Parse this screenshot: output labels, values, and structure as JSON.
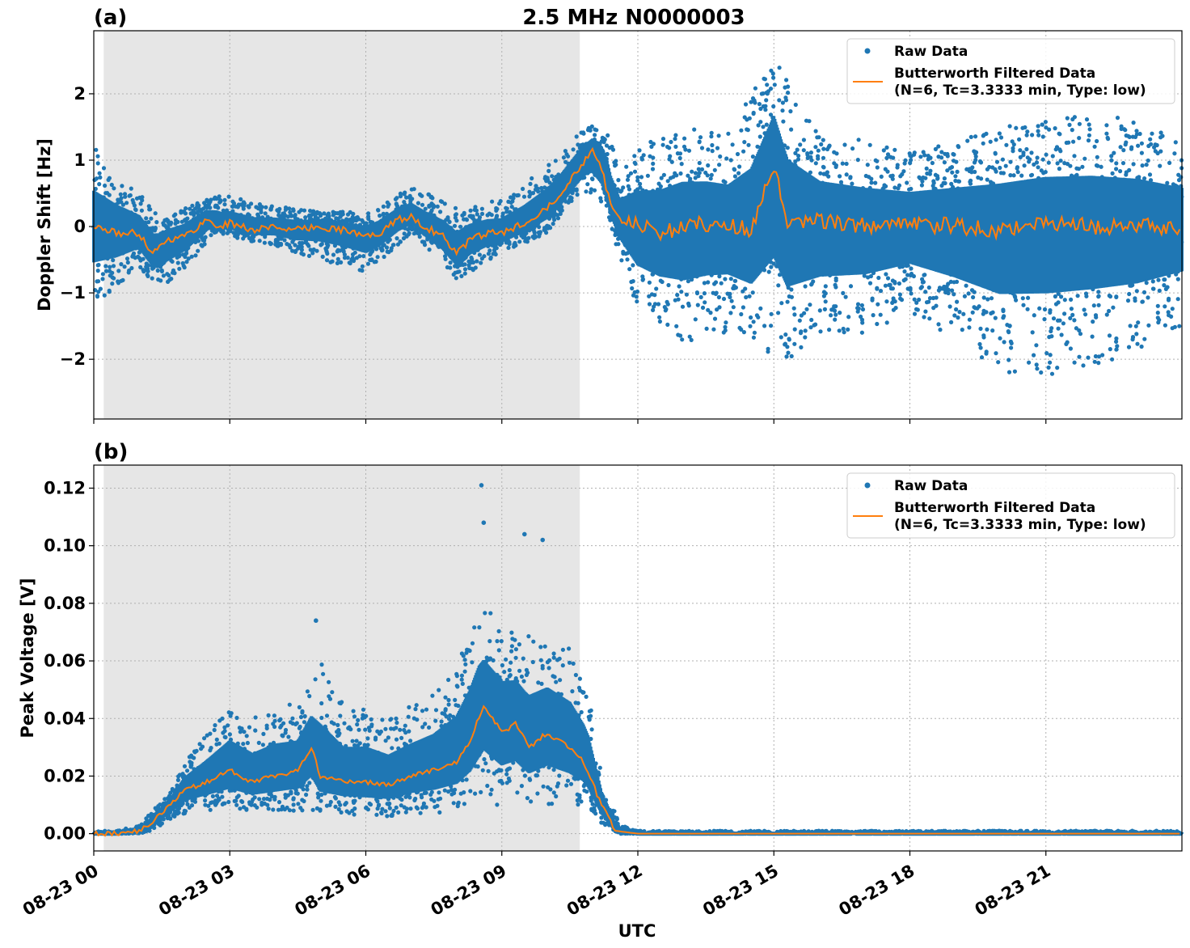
{
  "figure": {
    "title": "2.5 MHz N0000003",
    "xlabel": "UTC"
  },
  "colors": {
    "raw": "#1f77b4",
    "filtered": "#ff7f0e",
    "night_shade": "#e6e6e6"
  },
  "chart_data": [
    {
      "panel_label": "(a)",
      "type": "scatter",
      "title": "2.5 MHz N0000003",
      "ylabel": "Doppler Shift [Hz]",
      "xlabel": "",
      "xlim_hours": [
        0,
        24
      ],
      "ylim": [
        -2.9,
        2.95
      ],
      "yticks": [
        2,
        1,
        0,
        -1,
        -2
      ],
      "ytick_labels": [
        "2",
        "1",
        "0",
        "−1",
        "−2"
      ],
      "xticks_hours": [
        0,
        3,
        6,
        9,
        12,
        15,
        18,
        21
      ],
      "shaded_hours": [
        0.22,
        10.72
      ],
      "grid": true,
      "legend": {
        "position": "top-right",
        "raw_label": "Raw Data",
        "filtered_label_line1": "Butterworth Filtered Data",
        "filtered_label_line2": "(N=6, Tc=3.3333 min, Type: low)"
      },
      "series": [
        {
          "name": "Butterworth Filtered Data",
          "x_hours": [
            0,
            0.5,
            1,
            1.3,
            1.6,
            2,
            2.5,
            2.8,
            3,
            3.5,
            4,
            4.5,
            5,
            5.5,
            6,
            6.3,
            6.7,
            7,
            7.3,
            7.7,
            8,
            8.3,
            8.7,
            9,
            9.5,
            10,
            10.3,
            10.6,
            11,
            11.2,
            11.4,
            11.6,
            11.8,
            12,
            12.5,
            13,
            13.5,
            14,
            14.5,
            15,
            15.3,
            16,
            17,
            18,
            19,
            20,
            21,
            22,
            23,
            24
          ],
          "y": [
            0.0,
            -0.1,
            -0.1,
            -0.4,
            -0.2,
            -0.15,
            0.1,
            0.0,
            0.05,
            -0.05,
            0.0,
            -0.05,
            0.0,
            -0.05,
            -0.15,
            -0.1,
            0.1,
            0.15,
            0.0,
            -0.15,
            -0.4,
            -0.2,
            -0.1,
            -0.1,
            0.05,
            0.3,
            0.5,
            0.8,
            1.15,
            0.9,
            0.3,
            0.1,
            0.05,
            0.0,
            -0.1,
            0.0,
            0.05,
            0.0,
            -0.05,
            0.9,
            0.0,
            0.1,
            0.0,
            0.05,
            0.0,
            -0.05,
            0.05,
            0.0,
            0.0,
            0.0
          ]
        },
        {
          "name": "Raw Data",
          "x_hours": [
            0,
            1,
            1.5,
            2.7,
            4,
            6,
            7,
            8,
            9,
            10,
            10.8,
            11.3,
            11.6,
            12,
            13,
            14,
            15,
            16,
            17,
            18,
            19,
            20,
            21,
            22,
            23,
            24
          ],
          "y_min": [
            -1.2,
            -0.6,
            -1.0,
            -0.1,
            -0.3,
            -0.7,
            -0.1,
            -0.8,
            -0.4,
            -0.1,
            0.5,
            0.3,
            -0.5,
            -1.3,
            -1.8,
            -1.6,
            -2.1,
            -1.8,
            -1.6,
            -1.3,
            -1.7,
            -2.2,
            -2.3,
            -2.1,
            -1.9,
            -1.5
          ],
          "y_max": [
            1.2,
            0.5,
            0.1,
            0.5,
            0.3,
            0.2,
            0.6,
            0.3,
            0.4,
            0.9,
            1.5,
            1.6,
            0.8,
            1.2,
            1.5,
            1.4,
            2.6,
            1.4,
            1.3,
            1.1,
            1.3,
            1.5,
            1.6,
            1.7,
            1.6,
            1.3
          ]
        }
      ]
    },
    {
      "panel_label": "(b)",
      "type": "scatter",
      "title": "",
      "ylabel": "Peak Voltage [V]",
      "xlabel": "UTC",
      "xlim_hours": [
        0,
        24
      ],
      "ylim": [
        -0.006,
        0.128
      ],
      "yticks": [
        0.12,
        0.1,
        0.08,
        0.06,
        0.04,
        0.02,
        0.0
      ],
      "ytick_labels": [
        "0.12",
        "0.10",
        "0.08",
        "0.06",
        "0.04",
        "0.02",
        "0.00"
      ],
      "xticks_hours": [
        0,
        3,
        6,
        9,
        12,
        15,
        18,
        21
      ],
      "xtick_labels": [
        "08-23 00",
        "08-23 03",
        "08-23 06",
        "08-23 09",
        "08-23 12",
        "08-23 15",
        "08-23 18",
        "08-23 21"
      ],
      "shaded_hours": [
        0.22,
        10.72
      ],
      "grid": true,
      "legend": {
        "position": "top-right",
        "raw_label": "Raw Data",
        "filtered_label_line1": "Butterworth Filtered Data",
        "filtered_label_line2": "(N=6, Tc=3.3333 min, Type: low)"
      },
      "series": [
        {
          "name": "Butterworth Filtered Data",
          "x_hours": [
            0,
            0.5,
            1,
            1.3,
            1.6,
            2,
            2.5,
            3,
            3.5,
            4,
            4.5,
            4.8,
            5,
            5.5,
            6,
            6.5,
            7,
            7.5,
            8,
            8.3,
            8.6,
            9,
            9.3,
            9.6,
            10,
            10.5,
            10.8,
            11.2,
            11.5,
            12,
            24
          ],
          "y": [
            0.0,
            0.0,
            0.001,
            0.004,
            0.009,
            0.015,
            0.018,
            0.022,
            0.018,
            0.02,
            0.022,
            0.03,
            0.02,
            0.018,
            0.018,
            0.017,
            0.02,
            0.022,
            0.025,
            0.032,
            0.045,
            0.035,
            0.038,
            0.03,
            0.035,
            0.03,
            0.025,
            0.01,
            0.001,
            0.0,
            0.0
          ]
        },
        {
          "name": "Raw Data",
          "x_hours": [
            0,
            0.5,
            1,
            1.3,
            1.7,
            2,
            2.5,
            3,
            3.5,
            4,
            4.5,
            5,
            5.5,
            6,
            6.5,
            7,
            7.5,
            8,
            8.5,
            9,
            9.5,
            10,
            10.5,
            10.9,
            11.2,
            11.6,
            12,
            24
          ],
          "y_min": [
            0.0,
            0.0,
            0.0,
            0.001,
            0.004,
            0.007,
            0.008,
            0.008,
            0.008,
            0.008,
            0.008,
            0.008,
            0.007,
            0.006,
            0.006,
            0.007,
            0.007,
            0.008,
            0.01,
            0.01,
            0.01,
            0.01,
            0.01,
            0.01,
            0.003,
            0.0,
            0.0,
            0.0
          ],
          "y_max": [
            0.001,
            0.001,
            0.003,
            0.008,
            0.015,
            0.025,
            0.035,
            0.045,
            0.04,
            0.045,
            0.045,
            0.06,
            0.045,
            0.045,
            0.04,
            0.045,
            0.05,
            0.06,
            0.08,
            0.075,
            0.07,
            0.07,
            0.065,
            0.05,
            0.02,
            0.003,
            0.001,
            0.001
          ]
        }
      ],
      "annotated_peaks": [
        {
          "x_hours": 8.55,
          "y": 0.121
        },
        {
          "x_hours": 8.6,
          "y": 0.108
        },
        {
          "x_hours": 9.5,
          "y": 0.104
        },
        {
          "x_hours": 9.9,
          "y": 0.102
        },
        {
          "x_hours": 4.9,
          "y": 0.074
        }
      ]
    }
  ]
}
